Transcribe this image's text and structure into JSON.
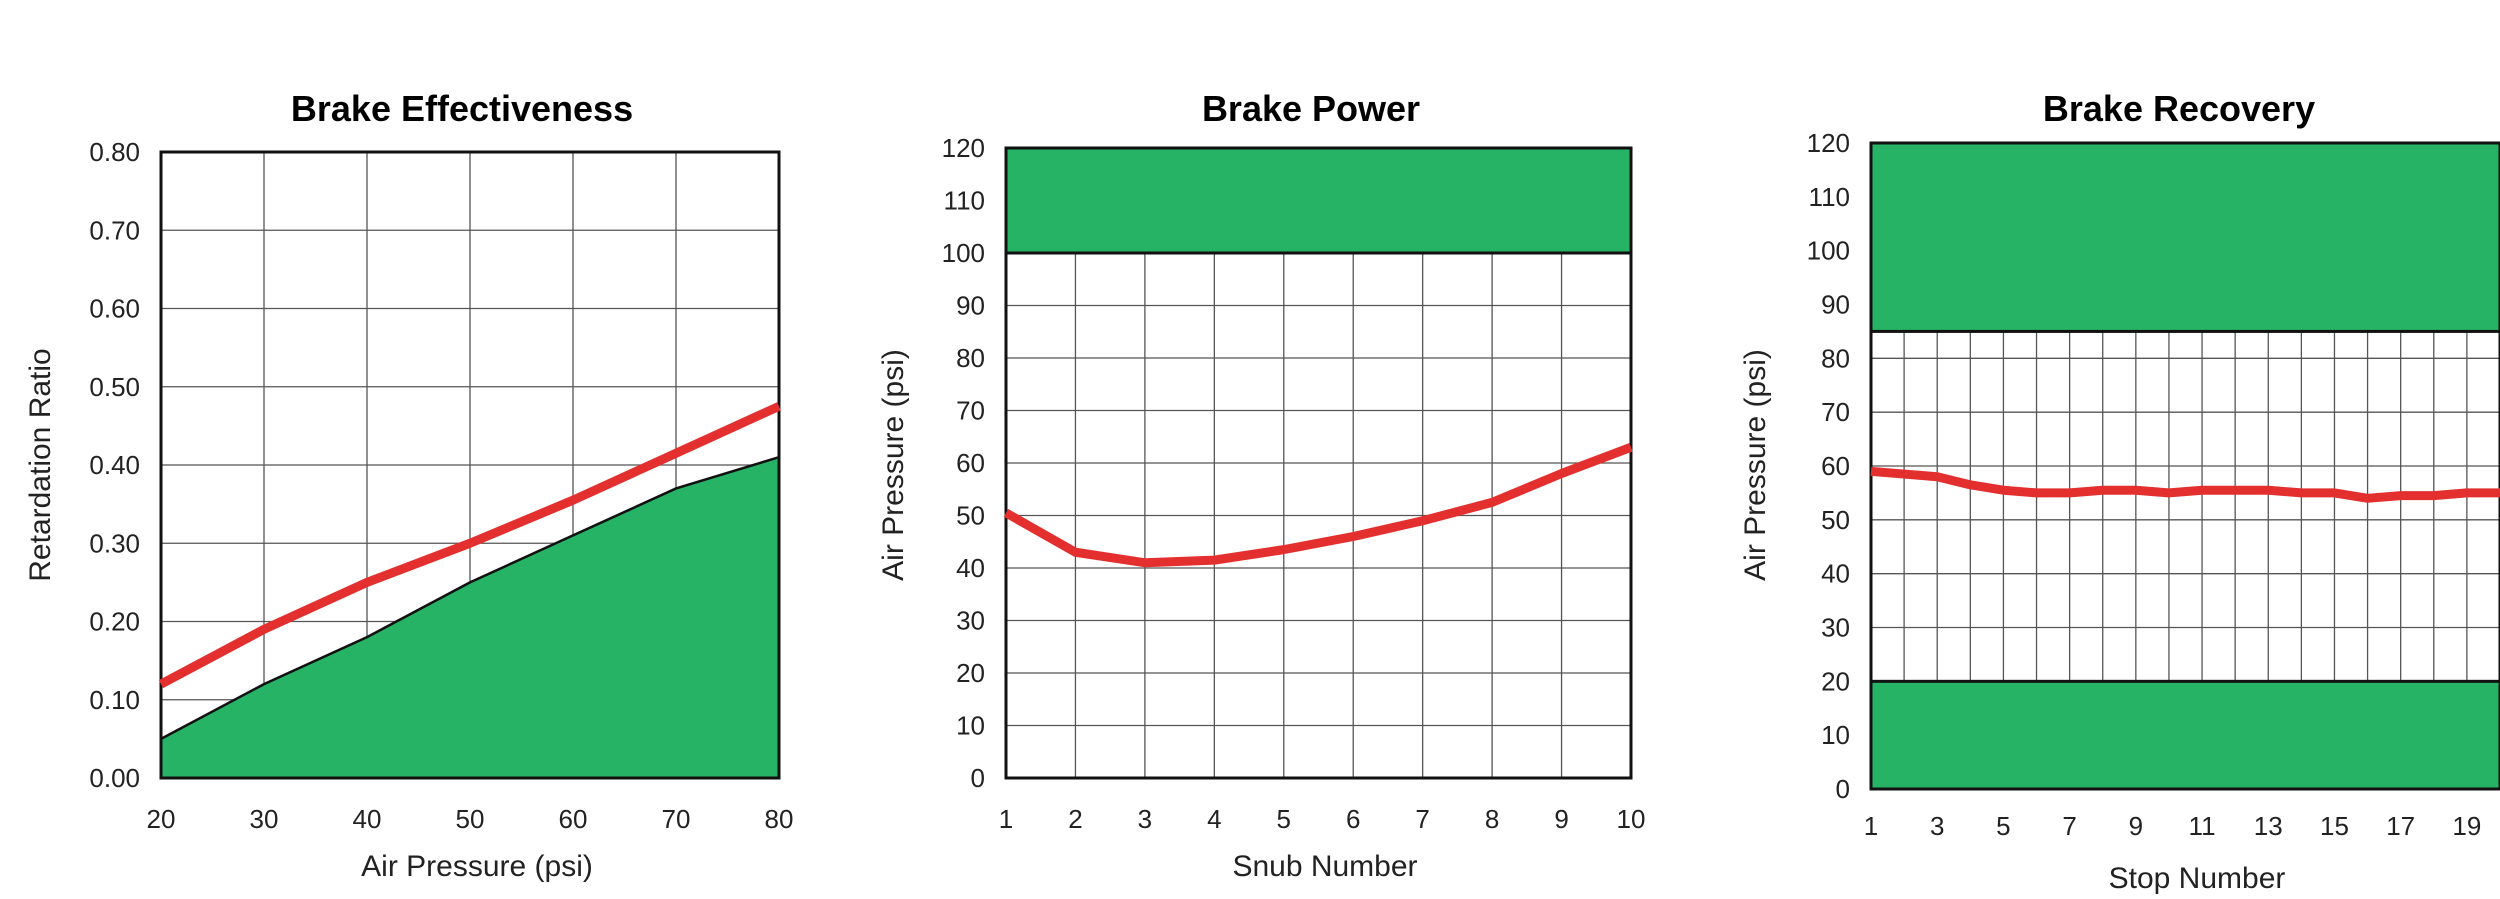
{
  "colors": {
    "band": "#27b366",
    "line": "#e3302f",
    "grid": "#555555",
    "frame": "#111111"
  },
  "chart_data": [
    {
      "type": "line",
      "title": "Brake Effectiveness",
      "xlabel": "Air Pressure (psi)",
      "ylabel": "Retardation Ratio",
      "xlim": [
        20,
        80
      ],
      "ylim": [
        0,
        0.8
      ],
      "grid": true,
      "x_ticks": [
        "20",
        "30",
        "40",
        "50",
        "60",
        "70",
        "80"
      ],
      "y_ticks": [
        "0.00",
        "0.10",
        "0.20",
        "0.30",
        "0.40",
        "0.50",
        "0.60",
        "0.70",
        "0.80"
      ],
      "area": {
        "x": [
          20,
          30,
          40,
          50,
          60,
          70,
          80
        ],
        "y": [
          0.05,
          0.12,
          0.18,
          0.25,
          0.31,
          0.37,
          0.41
        ]
      },
      "series": [
        {
          "x": [
            20,
            30,
            40,
            50,
            60,
            70,
            80
          ],
          "values": [
            0.12,
            0.19,
            0.25,
            0.3,
            0.355,
            0.415,
            0.475
          ]
        }
      ]
    },
    {
      "type": "line",
      "title": "Brake Power",
      "xlabel": "Snub Number",
      "ylabel": "Air Pressure (psi)",
      "xlim": [
        1,
        10
      ],
      "ylim": [
        0,
        120
      ],
      "grid": true,
      "x_ticks": [
        "1",
        "2",
        "3",
        "4",
        "5",
        "6",
        "7",
        "8",
        "9",
        "10"
      ],
      "y_ticks": [
        "0",
        "10",
        "20",
        "30",
        "40",
        "50",
        "60",
        "70",
        "80",
        "90",
        "100",
        "110",
        "120"
      ],
      "bands": [
        {
          "y0": 100,
          "y1": 120
        }
      ],
      "series": [
        {
          "x": [
            1,
            2,
            3,
            4,
            5,
            6,
            7,
            8,
            9,
            10
          ],
          "values": [
            50.5,
            43,
            41,
            41.5,
            43.5,
            46,
            49,
            52.5,
            58,
            63
          ]
        }
      ]
    },
    {
      "type": "line",
      "title": "Brake Recovery",
      "xlabel": "Stop Number",
      "ylabel": "Air Pressure (psi)",
      "xlim": [
        1,
        20
      ],
      "ylim": [
        0,
        120
      ],
      "grid": true,
      "x_ticks": [
        "1",
        "3",
        "5",
        "7",
        "9",
        "11",
        "13",
        "15",
        "17",
        "19"
      ],
      "y_ticks": [
        "0",
        "10",
        "20",
        "30",
        "40",
        "50",
        "60",
        "70",
        "80",
        "90",
        "100",
        "110",
        "120"
      ],
      "bands": [
        {
          "y0": 0,
          "y1": 20
        },
        {
          "y0": 85,
          "y1": 120
        }
      ],
      "series": [
        {
          "x": [
            1,
            2,
            3,
            4,
            5,
            6,
            7,
            8,
            9,
            10,
            11,
            12,
            13,
            14,
            15,
            16,
            17,
            18,
            19,
            20
          ],
          "values": [
            59,
            58.5,
            58,
            56.5,
            55.5,
            55,
            55,
            55.5,
            55.5,
            55,
            55.5,
            55.5,
            55.5,
            55,
            55,
            54,
            54.5,
            54.5,
            55,
            55
          ]
        }
      ]
    }
  ]
}
